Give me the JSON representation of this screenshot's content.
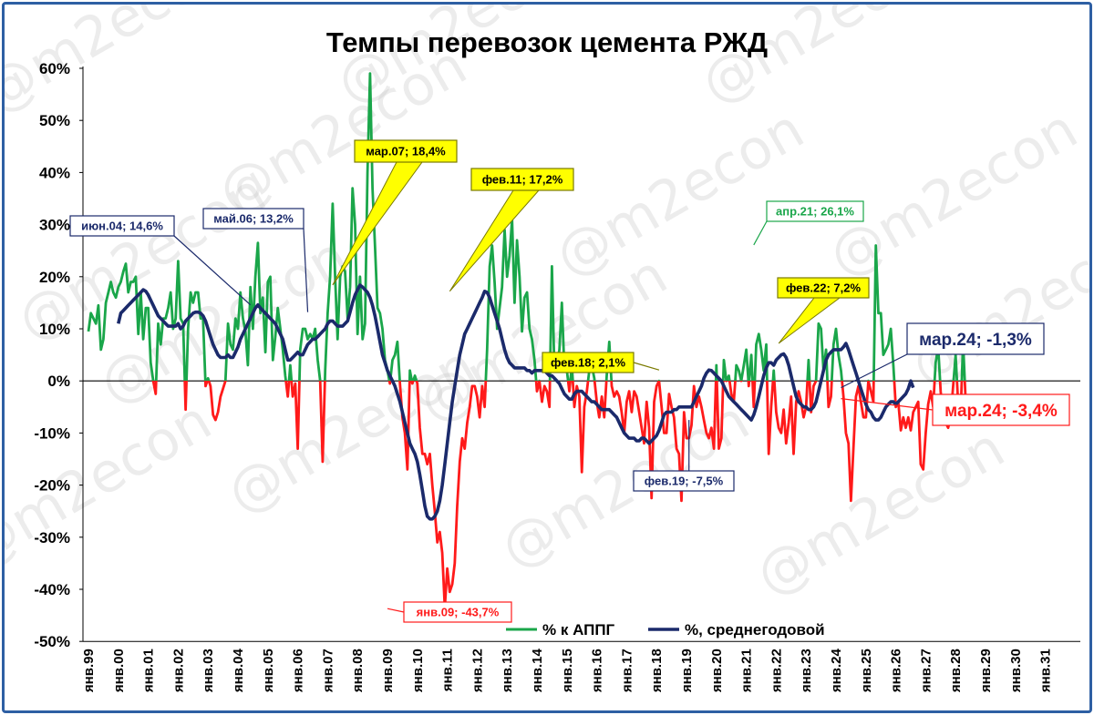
{
  "chart_data": {
    "type": "line",
    "title": "Темпы перевозок цемента РЖД",
    "watermark": "@m2econ",
    "y_ticks": [
      "60%",
      "50%",
      "40%",
      "30%",
      "20%",
      "10%",
      "0%",
      "-10%",
      "-20%",
      "-30%",
      "-40%",
      "-50%"
    ],
    "ylim": [
      -50,
      60
    ],
    "x_ticks": [
      "янв.99",
      "янв.00",
      "янв.01",
      "янв.02",
      "янв.03",
      "янв.04",
      "янв.05",
      "янв.06",
      "янв.07",
      "янв.08",
      "янв.09",
      "янв.10",
      "янв.11",
      "янв.12",
      "янв.13",
      "янв.14",
      "янв.15",
      "янв.16",
      "янв.17",
      "янв.18",
      "янв.19",
      "янв.20",
      "янв.21",
      "янв.22",
      "янв.23",
      "янв.24",
      "янв.25",
      "янв.26",
      "янв.27",
      "янв.28",
      "янв.29",
      "янв.30",
      "янв.31"
    ],
    "x_start_year": 1999,
    "legend": [
      {
        "label": "% к АППГ",
        "color": "#1aa64a"
      },
      {
        "label": "%, среднегодовой",
        "color": "#1b2a6b"
      }
    ],
    "legend_placement": "bottom-center",
    "grid": false,
    "colors": {
      "positive": "#1aa64a",
      "negative": "#ff1a1a",
      "avg": "#1b2a6b",
      "callout_yellow": "#ffff00"
    },
    "series": [
      {
        "name": "% к АППГ",
        "x_start": "янв.99",
        "values": [
          9.5,
          13,
          12,
          11,
          14.5,
          6,
          8,
          15,
          17,
          19,
          17,
          16,
          18,
          19,
          21,
          22.5,
          17,
          19,
          19,
          20,
          9,
          17,
          8,
          14,
          14,
          3.5,
          0,
          -2.5,
          11,
          7,
          12,
          12,
          14,
          17,
          10,
          12,
          23,
          12,
          11,
          -5.5,
          10,
          17,
          15,
          17,
          17,
          12,
          12,
          -1,
          0.5,
          -1,
          -6.5,
          -7.5,
          -6,
          -3,
          -1.5,
          0,
          11,
          7,
          6,
          12,
          10,
          17,
          12,
          9.5,
          3,
          18,
          10,
          20,
          26.5,
          13,
          16,
          5.5,
          19,
          20,
          4,
          8.5,
          14,
          10,
          6,
          1,
          -3,
          3,
          -3,
          -0.5,
          -13,
          6,
          10,
          10,
          8,
          9,
          8,
          10,
          4,
          0,
          -15.5,
          2,
          13,
          20,
          34,
          20,
          8,
          20,
          22,
          21,
          12,
          18,
          37,
          30,
          9,
          20,
          8,
          11,
          40,
          59,
          37,
          26,
          14,
          13,
          10,
          4,
          2,
          -0.5,
          4,
          5,
          7.5,
          -0.5,
          -7,
          -10,
          -17,
          2,
          -0.5,
          1,
          -0.5,
          -9,
          -14,
          -14,
          -16,
          -14,
          -20,
          -25,
          -31,
          -29,
          -33,
          -43.5,
          -36,
          -40.5,
          -39,
          -35,
          -24,
          -15.5,
          -11,
          -13,
          -8,
          -5,
          -1,
          -1,
          -3,
          -7,
          -1,
          -5,
          6,
          22,
          26,
          19,
          10,
          14,
          18,
          29,
          20,
          24,
          31,
          15,
          27,
          20,
          9.5,
          16,
          17,
          10,
          8,
          4,
          -2,
          0,
          -4,
          -1,
          -2,
          -5,
          22,
          2,
          3,
          6,
          15,
          2,
          2,
          -2,
          3,
          -5,
          -1,
          -3,
          -17.5,
          -5,
          -2,
          2,
          3,
          0.5,
          -4,
          -7,
          -3,
          -7,
          1,
          7.5,
          -1,
          -3,
          -2,
          -3,
          -6,
          -10,
          -4,
          -2,
          -6,
          -2,
          -3,
          -6,
          -9,
          -12,
          -4,
          -9,
          -22.5,
          -4,
          -1,
          0,
          -5,
          -10,
          -10,
          -2.5,
          -5,
          -7,
          -13,
          -14,
          -23,
          -6,
          -11,
          -11,
          -8.5,
          -1,
          -5,
          -3,
          -5,
          -7.5,
          -10,
          -11,
          -9,
          -13,
          3,
          -13,
          -11,
          4,
          0,
          1,
          -2.5,
          -4,
          3,
          2,
          0,
          3,
          6,
          -1,
          5,
          -5,
          7,
          9,
          6,
          2,
          7,
          -14,
          -5,
          2,
          -6,
          -9,
          -10,
          -5.5,
          -12,
          -8,
          -3,
          -14,
          -4,
          -2,
          -4,
          -7,
          -5,
          4,
          -6,
          -1,
          0,
          11,
          10,
          2,
          6,
          -5,
          -3,
          7,
          10,
          5,
          2,
          -3,
          -10,
          -12,
          -23,
          -13,
          -3,
          -1,
          -4,
          -7,
          -7,
          0,
          -2,
          -4,
          26,
          13,
          13,
          5,
          6,
          7,
          10,
          3,
          -5,
          -4,
          -9.5,
          -7,
          -9,
          -7,
          -9.5,
          -6,
          -5,
          -4,
          -16,
          -17,
          -10,
          -4.5,
          -2,
          -5,
          3.5,
          6.5,
          -2,
          -7,
          -8,
          -9,
          -7,
          -1,
          5,
          -4,
          -6.5,
          7.5,
          -3.4
        ]
      },
      {
        "name": "%, среднегодовой",
        "x_start": "янв.00",
        "values": [
          11,
          13,
          13.5,
          14,
          14.5,
          15,
          15.5,
          16,
          16.5,
          17,
          17.5,
          17.2,
          16.5,
          15.5,
          14.5,
          13.5,
          12.5,
          12,
          11.5,
          11,
          10.5,
          10.5,
          10.5,
          10.5,
          11,
          10,
          10.5,
          11.5,
          12,
          12.5,
          13,
          13.2,
          13.2,
          13,
          12.5,
          11.5,
          10,
          8.5,
          7,
          6,
          5,
          4.5,
          4.5,
          4.5,
          5,
          4.5,
          4.5,
          5.5,
          6.5,
          8,
          9,
          10,
          11,
          12,
          13,
          14,
          14.6,
          14,
          13.5,
          13,
          12.5,
          12,
          11.5,
          11,
          10,
          9,
          8,
          6,
          4,
          4,
          4.5,
          5,
          5.5,
          5,
          5,
          6,
          7,
          7.5,
          8,
          8,
          8.5,
          9,
          9.5,
          10,
          11,
          11.5,
          11.5,
          11,
          10.5,
          10.5,
          10.5,
          11,
          11.5,
          13.2,
          15,
          16.5,
          17.5,
          18.4,
          18,
          17.5,
          17,
          16,
          14.5,
          12.5,
          10,
          7.5,
          5,
          3.5,
          2,
          1,
          0,
          -1,
          -2.5,
          -4,
          -6,
          -8,
          -10,
          -12,
          -13,
          -14,
          -15.5,
          -18,
          -21,
          -24,
          -26,
          -26.5,
          -26.5,
          -26,
          -25,
          -23,
          -20,
          -16,
          -12,
          -8,
          -4,
          -1,
          2,
          5,
          7,
          9,
          10,
          11,
          12,
          13,
          14,
          15,
          16,
          17.2,
          17,
          16,
          14.5,
          13,
          11.5,
          10,
          8,
          6,
          4.5,
          3.5,
          3,
          2.5,
          2.5,
          2.5,
          2.5,
          2.5,
          2,
          2,
          1.5,
          2,
          2,
          2,
          2,
          2,
          1.5,
          1,
          1,
          0.5,
          0,
          -0.5,
          -1.5,
          -2.5,
          -3,
          -3.5,
          -3.5,
          -2.5,
          -2,
          -2,
          -2,
          -2.5,
          -3,
          -3.5,
          -4,
          -4,
          -4.5,
          -5,
          -5.5,
          -5.5,
          -5.5,
          -5.5,
          -6,
          -6.5,
          -7,
          -8,
          -9,
          -10,
          -10.5,
          -11,
          -11,
          -11,
          -11.5,
          -11.5,
          -11,
          -11,
          -11.5,
          -12,
          -11.5,
          -11,
          -10.5,
          -9.5,
          -8,
          -6.5,
          -6,
          -6,
          -6,
          -5.5,
          -5.5,
          -5,
          -5,
          -5,
          -5,
          -5,
          -5,
          -4,
          -3,
          -2,
          -1,
          0.5,
          1.5,
          2.1,
          2,
          1.5,
          1,
          0.5,
          0,
          -1,
          -2,
          -3,
          -3.5,
          -4,
          -4.5,
          -5,
          -5.5,
          -6,
          -6.5,
          -7,
          -7.5,
          -6.5,
          -5,
          -3,
          -1,
          1,
          2.5,
          3.5,
          3.5,
          3,
          4,
          4.5,
          5,
          5.2,
          4.5,
          3,
          1,
          -1,
          -3,
          -4,
          -4.5,
          -5,
          -5,
          -5.5,
          -5.5,
          -5,
          -4,
          -2,
          0,
          2,
          4,
          5,
          5.5,
          6,
          6,
          6,
          6,
          6.5,
          7.2,
          6,
          4.5,
          3,
          1.5,
          0,
          -1.5,
          -3,
          -4.5,
          -5.5,
          -6,
          -7,
          -7.5,
          -7.5,
          -7,
          -6,
          -5,
          -4.5,
          -4,
          -4,
          -4.5,
          -4,
          -3.5,
          -3,
          -2.5,
          -1.5,
          0,
          -1.3
        ]
      }
    ],
    "annotations": [
      {
        "text": "июн.04; 14,6%",
        "style": "navy"
      },
      {
        "text": "май.06; 13,2%",
        "style": "navy"
      },
      {
        "text": "мар.07; 18,4%",
        "style": "yellow"
      },
      {
        "text": "фев.11; 17,2%",
        "style": "yellow"
      },
      {
        "text": "янв.09; -43,7%",
        "style": "red"
      },
      {
        "text": "фев.18; 2,1%",
        "style": "yellow"
      },
      {
        "text": "фев.19; -7,5%",
        "style": "navy"
      },
      {
        "text": "апр.21; 26,1%",
        "style": "green"
      },
      {
        "text": "фев.22; 7,2%",
        "style": "yellow"
      },
      {
        "text": "мар.24; -1,3%",
        "style": "navy-large"
      },
      {
        "text": "мар.24; -3,4%",
        "style": "red-large"
      }
    ]
  }
}
